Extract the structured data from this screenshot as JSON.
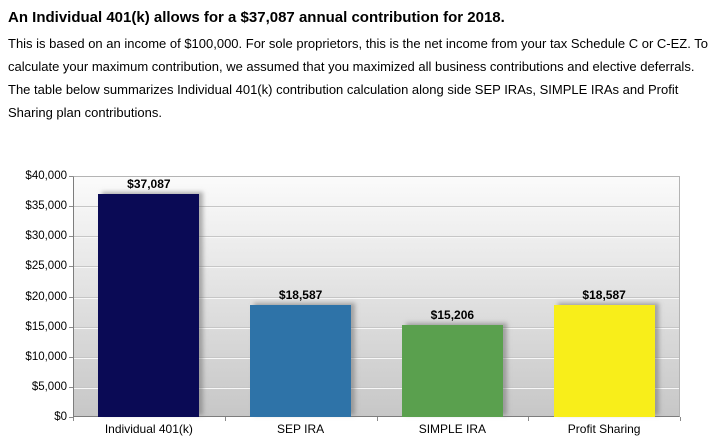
{
  "header": {
    "title": "An Individual 401(k) allows for a $37,087 annual contribution for 2018.",
    "description": "This is based on an income of $100,000. For sole proprietors, this is the net income from your tax Schedule C or C-EZ. To calculate your maximum contribution, we assumed that you maximized all business contributions and elective deferrals. The table below summarizes Individual 401(k) contribution calculation along side SEP IRAs, SIMPLE IRAs and Profit Sharing plan contributions."
  },
  "chart_data": {
    "type": "bar",
    "title": "",
    "xlabel": "",
    "ylabel": "",
    "categories": [
      "Individual 401(k)",
      "SEP IRA",
      "SIMPLE IRA",
      "Profit Sharing"
    ],
    "values": [
      37087,
      18587,
      15206,
      18587
    ],
    "value_labels": [
      "$37,087",
      "$18,587",
      "$15,206",
      "$18,587"
    ],
    "bar_colors": [
      "#0a0a55",
      "#2e73a8",
      "#5aa04e",
      "#f8ee1a"
    ],
    "y_tick_labels": [
      "$40,000",
      "$35,000",
      "$30,000",
      "$25,000",
      "$20,000",
      "$15,000",
      "$10,000",
      "$5,000",
      "$0"
    ],
    "ylim": [
      0,
      40000
    ],
    "grid": true,
    "legend_position": "none",
    "plot_background": {
      "top": "#fbfbfb",
      "bottom": "#c7c7c7"
    }
  }
}
